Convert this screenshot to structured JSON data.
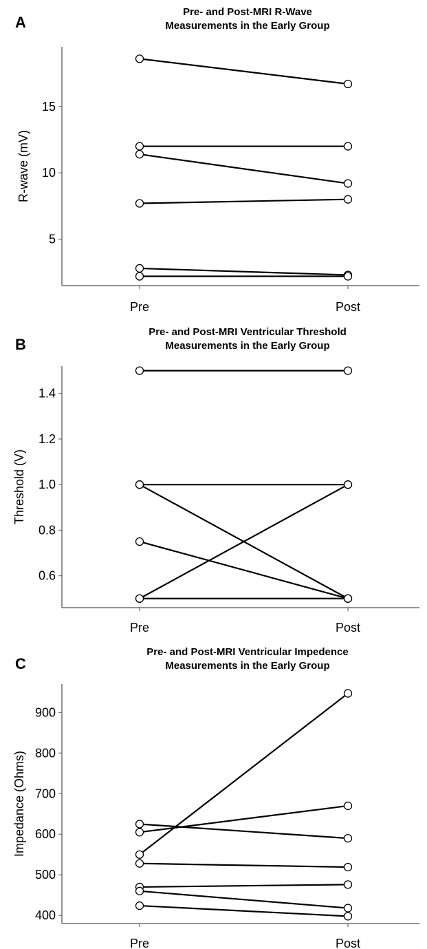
{
  "chart_data": [
    {
      "type": "line",
      "panel_label": "A",
      "title": [
        "Pre- and Post-MRI R-Wave",
        "Measurements in the Early Group"
      ],
      "xlabel": "",
      "ylabel": "R-wave (mV)",
      "categories": [
        "Pre",
        "Post"
      ],
      "ylim": [
        1.5,
        19.5
      ],
      "yticks": [
        5,
        10,
        15
      ],
      "grid": false,
      "series": [
        {
          "values": [
            18.6,
            16.7
          ]
        },
        {
          "values": [
            12.0,
            12.0
          ]
        },
        {
          "values": [
            11.4,
            9.2
          ]
        },
        {
          "values": [
            7.7,
            8.0
          ]
        },
        {
          "values": [
            2.8,
            2.3
          ]
        },
        {
          "values": [
            2.2,
            2.2
          ]
        }
      ]
    },
    {
      "type": "line",
      "panel_label": "B",
      "title": [
        "Pre- and Post-MRI Ventricular Threshold",
        "Measurements in the Early Group"
      ],
      "xlabel": "",
      "ylabel": "Threshold (V)",
      "categories": [
        "Pre",
        "Post"
      ],
      "ylim": [
        0.46,
        1.52
      ],
      "yticks": [
        "0.6",
        "0.8",
        "1.0",
        "1.2",
        "1.4"
      ],
      "grid": false,
      "series": [
        {
          "values": [
            1.5,
            1.5
          ]
        },
        {
          "values": [
            1.0,
            1.0
          ]
        },
        {
          "values": [
            1.0,
            0.5
          ]
        },
        {
          "values": [
            0.75,
            0.5
          ]
        },
        {
          "values": [
            0.5,
            1.0
          ]
        },
        {
          "values": [
            0.5,
            0.5
          ]
        }
      ]
    },
    {
      "type": "line",
      "panel_label": "C",
      "title": [
        "Pre- and Post-MRI Ventricular Impedence",
        "Measurements in the Early Group"
      ],
      "xlabel": "",
      "ylabel": "Impedance (Ohms)",
      "categories": [
        "Pre",
        "Post"
      ],
      "ylim": [
        380,
        970
      ],
      "yticks": [
        400,
        500,
        600,
        700,
        800,
        900
      ],
      "grid": false,
      "series": [
        {
          "values": [
            550,
            947
          ]
        },
        {
          "values": [
            605,
            670
          ]
        },
        {
          "values": [
            625,
            590
          ]
        },
        {
          "values": [
            528,
            519
          ]
        },
        {
          "values": [
            470,
            476
          ]
        },
        {
          "values": [
            460,
            418
          ]
        },
        {
          "values": [
            424,
            398
          ]
        }
      ]
    }
  ]
}
